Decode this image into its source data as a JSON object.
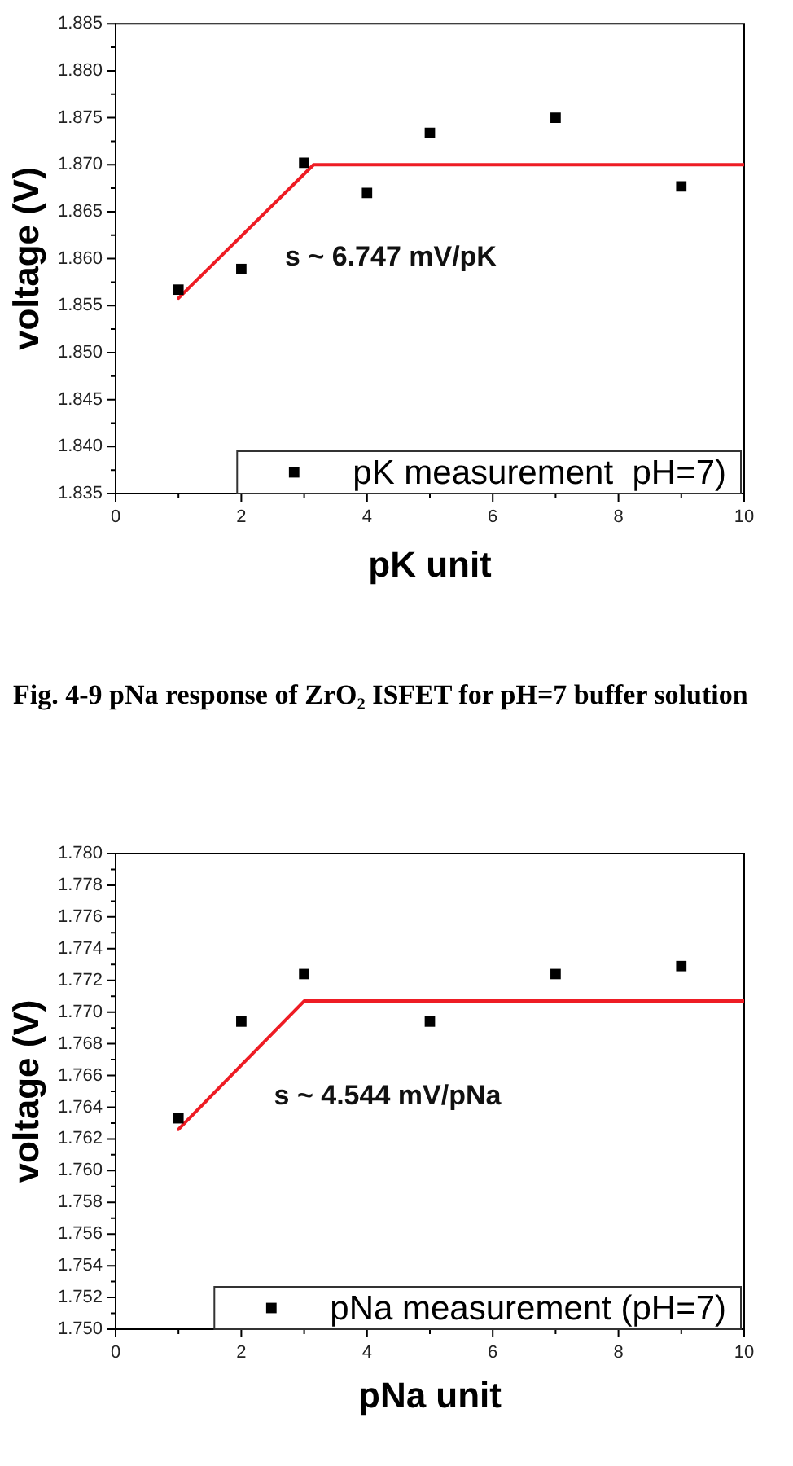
{
  "chart_data": [
    {
      "type": "scatter",
      "xlabel": "pK unit",
      "ylabel": "voltage (V)",
      "x": [
        1,
        2,
        3,
        4,
        5,
        7,
        9
      ],
      "series": [
        {
          "name": "pK measurement  pH=7)",
          "color": "#000000",
          "values": [
            1.8567,
            1.8589,
            1.8702,
            1.867,
            1.8734,
            1.875,
            1.8677
          ]
        },
        {
          "type": "line",
          "color": "#ee1c24",
          "marker": "none",
          "x": [
            1,
            3.15,
            10
          ],
          "values": [
            1.8558,
            1.87,
            1.87
          ]
        }
      ],
      "xlim": [
        0,
        10
      ],
      "xticks": [
        0,
        {
          "value": 1,
          "label": null
        },
        2,
        {
          "value": 3,
          "label": null
        },
        4,
        {
          "value": 5,
          "label": null
        },
        6,
        {
          "value": 7,
          "label": null
        },
        8,
        {
          "value": 9,
          "label": null
        },
        10
      ],
      "ylim": [
        1.835,
        1.885
      ],
      "yticks": [
        1.835,
        {
          "value": 1.8375,
          "label": null
        },
        {
          "value": 1.84,
          "label": "1.840"
        },
        {
          "value": 1.8425,
          "label": null
        },
        1.845,
        {
          "value": 1.8475,
          "label": null
        },
        {
          "value": 1.85,
          "label": "1.850"
        },
        {
          "value": 1.8525,
          "label": null
        },
        1.855,
        {
          "value": 1.8575,
          "label": null
        },
        {
          "value": 1.86,
          "label": "1.860"
        },
        {
          "value": 1.8625,
          "label": null
        },
        1.865,
        {
          "value": 1.8675,
          "label": null
        },
        {
          "value": 1.87,
          "label": "1.870"
        },
        {
          "value": 1.8725,
          "label": null
        },
        1.875,
        {
          "value": 1.8775,
          "label": null
        },
        {
          "value": 1.88,
          "label": "1.880"
        },
        {
          "value": 1.8825,
          "label": null
        },
        1.885
      ],
      "annotations": [
        "s ~ 6.747 mV/pK"
      ],
      "legend": "bottom right",
      "marker": "square"
    },
    {
      "type": "scatter",
      "xlabel": "pNa unit",
      "ylabel": "voltage (V)",
      "x": [
        1,
        2,
        3,
        5,
        7,
        9
      ],
      "series": [
        {
          "name": "pNa measurement (pH=7)",
          "color": "#000000",
          "values": [
            1.7633,
            1.7694,
            1.7724,
            1.7694,
            1.7724,
            1.7729
          ]
        },
        {
          "type": "line",
          "color": "#ee1c24",
          "marker": "none",
          "x": [
            1,
            3,
            10
          ],
          "values": [
            1.7626,
            1.7707,
            1.7707
          ]
        }
      ],
      "xlim": [
        0,
        10
      ],
      "xticks": [
        0,
        {
          "value": 1,
          "label": null
        },
        2,
        {
          "value": 3,
          "label": null
        },
        4,
        {
          "value": 5,
          "label": null
        },
        6,
        {
          "value": 7,
          "label": null
        },
        8,
        {
          "value": 9,
          "label": null
        },
        10
      ],
      "ylim": [
        1.75,
        1.78
      ],
      "yticks": [
        {
          "value": 1.75,
          "label": "1.750"
        },
        {
          "value": 1.751,
          "label": null
        },
        1.752,
        {
          "value": 1.753,
          "label": null
        },
        1.754,
        {
          "value": 1.755,
          "label": null
        },
        1.756,
        {
          "value": 1.757,
          "label": null
        },
        1.758,
        {
          "value": 1.759,
          "label": null
        },
        {
          "value": 1.76,
          "label": "1.760"
        },
        {
          "value": 1.761,
          "label": null
        },
        1.762,
        {
          "value": 1.763,
          "label": null
        },
        1.764,
        {
          "value": 1.765,
          "label": null
        },
        1.766,
        {
          "value": 1.767,
          "label": null
        },
        1.768,
        {
          "value": 1.769,
          "label": null
        },
        {
          "value": 1.77,
          "label": "1.770"
        },
        {
          "value": 1.771,
          "label": null
        },
        1.772,
        {
          "value": 1.773,
          "label": null
        },
        1.774,
        {
          "value": 1.775,
          "label": null
        },
        1.776,
        {
          "value": 1.777,
          "label": null
        },
        1.778,
        {
          "value": 1.779,
          "label": null
        },
        {
          "value": 1.78,
          "label": "1.780"
        }
      ],
      "annotations": [
        "Fig. 4-9 pNa response of ZrO₂ ISFET for pH=7 buffer solution",
        "s ~ 4.544 mV/pNa"
      ],
      "legend": "bottom right",
      "marker": "square"
    }
  ]
}
